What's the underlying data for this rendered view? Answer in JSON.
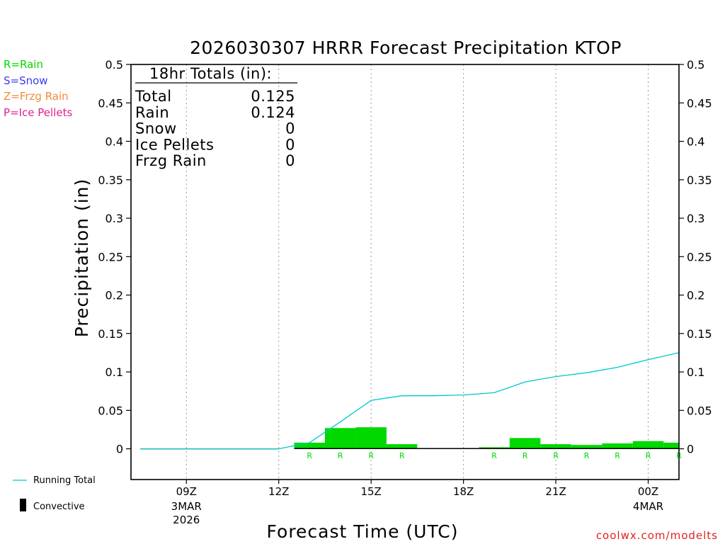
{
  "chart_data": {
    "type": "bar",
    "title": "2026030307 HRRR Forecast Precipitation KTOP",
    "xlabel": "Forecast Time (UTC)",
    "ylabel": "Precipitation (in)",
    "ylim": [
      -0.04,
      0.5
    ],
    "yticks": [
      "0.5",
      "0.45",
      "0.4",
      "0.35",
      "0.3",
      "0.25",
      "0.2",
      "0.15",
      "0.1",
      "0.05",
      "0"
    ],
    "ytick_values": [
      0.5,
      0.45,
      0.4,
      0.35,
      0.3,
      0.25,
      0.2,
      0.15,
      0.1,
      0.05,
      0
    ],
    "xlim": [
      7.2,
      25.0
    ],
    "xticks": [
      {
        "hour": 9,
        "label": "09Z",
        "sub1": "3MAR",
        "sub2": "2026"
      },
      {
        "hour": 12,
        "label": "12Z",
        "sub1": "",
        "sub2": ""
      },
      {
        "hour": 15,
        "label": "15Z",
        "sub1": "",
        "sub2": ""
      },
      {
        "hour": 18,
        "label": "18Z",
        "sub1": "",
        "sub2": ""
      },
      {
        "hour": 21,
        "label": "21Z",
        "sub1": "",
        "sub2": ""
      },
      {
        "hour": 24,
        "label": "00Z",
        "sub1": "4MAR",
        "sub2": ""
      }
    ],
    "hourly_precip": {
      "hours": [
        8,
        9,
        10,
        11,
        12,
        13,
        14,
        15,
        16,
        17,
        18,
        19,
        20,
        21,
        22,
        23,
        24,
        25
      ],
      "values": [
        0,
        0,
        0,
        0,
        0,
        0.008,
        0.027,
        0.028,
        0.006,
        0,
        0,
        0.002,
        0.014,
        0.006,
        0.005,
        0.007,
        0.01,
        0.008
      ],
      "types": [
        "",
        "",
        "",
        "",
        "",
        "R",
        "R",
        "R",
        "R",
        "",
        "",
        "R",
        "R",
        "R",
        "R",
        "R",
        "R",
        "R"
      ],
      "convective": [
        0,
        0,
        0,
        0,
        0,
        0.001,
        0.001,
        0.001,
        0.001,
        0.001,
        0.001,
        0.001,
        0.001,
        0.001,
        0.001,
        0.001,
        0.001,
        0.001
      ]
    },
    "running_total": {
      "hours": [
        7.5,
        12,
        13,
        14,
        15,
        16,
        17,
        18,
        19,
        20,
        21,
        22,
        23,
        24,
        25
      ],
      "values": [
        0,
        0,
        0.008,
        0.035,
        0.063,
        0.069,
        0.069,
        0.07,
        0.073,
        0.087,
        0.094,
        0.099,
        0.106,
        0.116,
        0.125
      ]
    },
    "colors": {
      "rain": "#00d800",
      "running_total": "#00c8c8",
      "grid": "#999999"
    }
  },
  "totals_box": {
    "header": "18hr Totals (in):",
    "rows": [
      {
        "label": "Total",
        "value": "0.125"
      },
      {
        "label": "Rain",
        "value": "0.124"
      },
      {
        "label": "Snow",
        "value": "0"
      },
      {
        "label": "Ice Pellets",
        "value": "0"
      },
      {
        "label": "Frzg Rain",
        "value": "0"
      }
    ]
  },
  "type_legend": [
    {
      "text": "R=Rain",
      "color": "#00d800"
    },
    {
      "text": "S=Snow",
      "color": "#3c3cf0"
    },
    {
      "text": "Z=Frzg Rain",
      "color": "#f08c3c"
    },
    {
      "text": "P=Ice Pellets",
      "color": "#e0208c"
    }
  ],
  "line_legend": {
    "running_total": "Running Total",
    "convective": "Convective"
  },
  "watermark": "coolwx.com/modelts"
}
